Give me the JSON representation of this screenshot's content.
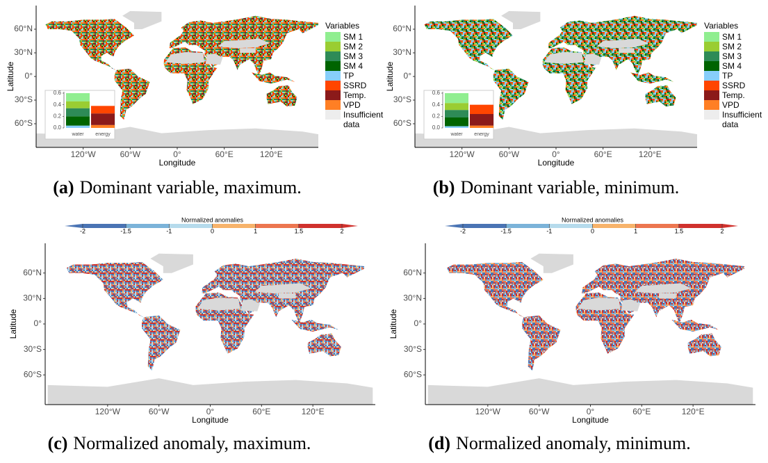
{
  "panels": [
    {
      "label": "(a)",
      "caption": "Dominant variable, maximum.",
      "map": {
        "x_label": "Longitude",
        "y_label": "Latitude",
        "xlim": [
          -180,
          180
        ],
        "ylim": [
          -90,
          90
        ],
        "xticks": [
          {
            "value": -120,
            "label": "120°W"
          },
          {
            "value": -60,
            "label": "60°W"
          },
          {
            "value": 0,
            "label": "0°"
          },
          {
            "value": 60,
            "label": "60°E"
          },
          {
            "value": 120,
            "label": "120°E"
          }
        ],
        "yticks": [
          {
            "value": -60,
            "label": "60°S"
          },
          {
            "value": -30,
            "label": "30°S"
          },
          {
            "value": 0,
            "label": "0°"
          },
          {
            "value": 30,
            "label": "30°N"
          },
          {
            "value": 60,
            "label": "60°N"
          }
        ]
      },
      "inset": {
        "type": "bar",
        "stacked": true,
        "legend_title": "Variables",
        "categories": [
          "water",
          "energy"
        ],
        "ylim": [
          0,
          0.6
        ],
        "yticks": [
          {
            "value": 0,
            "label": "0.0"
          },
          0.2,
          0.4,
          0.6
        ],
        "series": [
          {
            "name": "SM 1",
            "color": "#90ee90",
            "values": [
              0.14,
              null
            ]
          },
          {
            "name": "SM 2",
            "color": "#9acd32",
            "values": [
              0.12,
              null
            ]
          },
          {
            "name": "SM 3",
            "color": "#2e8b57",
            "values": [
              0.14,
              null
            ]
          },
          {
            "name": "SM 4",
            "color": "#006400",
            "values": [
              0.16,
              null
            ]
          },
          {
            "name": "TP",
            "color": "#87cefa",
            "values": [
              0.04,
              null
            ]
          },
          {
            "name": "SSRD",
            "color": "#ff4500",
            "values": [
              null,
              0.13
            ]
          },
          {
            "name": "Temp.",
            "color": "#8b1a1a",
            "values": [
              null,
              0.2
            ]
          },
          {
            "name": "VPD",
            "color": "#ff7f24",
            "values": [
              null,
              0.05
            ]
          }
        ],
        "missing": {
          "name": "Insufficient data",
          "color": "#ededed"
        }
      }
    },
    {
      "label": "(b)",
      "caption": "Dominant variable, minimum.",
      "map": {
        "x_label": "Longitude",
        "y_label": "Latitude",
        "xlim": [
          -180,
          180
        ],
        "ylim": [
          -90,
          90
        ],
        "xticks": [
          {
            "value": -120,
            "label": "120°W"
          },
          {
            "value": -60,
            "label": "60°W"
          },
          {
            "value": 0,
            "label": "0°"
          },
          {
            "value": 60,
            "label": "60°E"
          },
          {
            "value": 120,
            "label": "120°E"
          }
        ],
        "yticks": [
          {
            "value": -60,
            "label": "60°S"
          },
          {
            "value": -30,
            "label": "30°S"
          },
          {
            "value": 0,
            "label": "0°"
          },
          {
            "value": 30,
            "label": "30°N"
          },
          {
            "value": 60,
            "label": "60°N"
          }
        ]
      },
      "inset": {
        "type": "bar",
        "stacked": true,
        "legend_title": "Variables",
        "categories": [
          "water",
          "energy"
        ],
        "ylim": [
          0,
          0.6
        ],
        "yticks": [
          {
            "value": 0,
            "label": "0.0"
          },
          0.2,
          0.4,
          0.6
        ],
        "series": [
          {
            "name": "SM 1",
            "color": "#90ee90",
            "values": [
              0.17,
              null
            ]
          },
          {
            "name": "SM 2",
            "color": "#9acd32",
            "values": [
              0.12,
              null
            ]
          },
          {
            "name": "SM 3",
            "color": "#2e8b57",
            "values": [
              0.13,
              null
            ]
          },
          {
            "name": "SM 4",
            "color": "#006400",
            "values": [
              0.15,
              null
            ]
          },
          {
            "name": "TP",
            "color": "#87cefa",
            "values": [
              0.03,
              null
            ]
          },
          {
            "name": "SSRD",
            "color": "#ff4500",
            "values": [
              null,
              0.16
            ]
          },
          {
            "name": "Temp.",
            "color": "#8b1a1a",
            "values": [
              null,
              0.2
            ]
          },
          {
            "name": "VPD",
            "color": "#ff7f24",
            "values": [
              null,
              0.04
            ]
          }
        ],
        "missing": {
          "name": "Insufficient data",
          "color": "#ededed"
        }
      }
    },
    {
      "label": "(c)",
      "caption": "Normalized anomaly, maximum.",
      "colorbar": {
        "title": "Normalized anomalies",
        "ticks": [
          -2,
          -1.5,
          -1,
          0,
          1,
          1.5,
          2
        ],
        "colors": [
          "#4a74b4",
          "#7bb3d9",
          "#b6dbec",
          "#f7b36b",
          "#ec7650",
          "#d0312d"
        ]
      },
      "map": {
        "x_label": "Longitude",
        "y_label": "Latitude",
        "xlim": [
          -193,
          193
        ],
        "ylim": [
          -95,
          95
        ],
        "xticks": [
          {
            "value": -120,
            "label": "120°W"
          },
          {
            "value": -60,
            "label": "60°W"
          },
          {
            "value": 0,
            "label": "0°"
          },
          {
            "value": 60,
            "label": "60°E"
          },
          {
            "value": 120,
            "label": "120°E"
          }
        ],
        "yticks": [
          {
            "value": -60,
            "label": "60°S"
          },
          {
            "value": -30,
            "label": "30°S"
          },
          {
            "value": 0,
            "label": "0°"
          },
          {
            "value": 30,
            "label": "30°N"
          },
          {
            "value": 60,
            "label": "60°N"
          }
        ]
      }
    },
    {
      "label": "(d)",
      "caption": "Normalized anomaly, minimum.",
      "colorbar": {
        "title": "Normalized anomalies",
        "ticks": [
          -2,
          -1.5,
          -1,
          0,
          1,
          1.5,
          2
        ],
        "colors": [
          "#4a74b4",
          "#7bb3d9",
          "#b6dbec",
          "#f7b36b",
          "#ec7650",
          "#d0312d"
        ]
      },
      "map": {
        "x_label": "Longitude",
        "y_label": "Latitude",
        "xlim": [
          -193,
          193
        ],
        "ylim": [
          -95,
          95
        ],
        "xticks": [
          {
            "value": -120,
            "label": "120°W"
          },
          {
            "value": -60,
            "label": "60°W"
          },
          {
            "value": 0,
            "label": "0°"
          },
          {
            "value": 60,
            "label": "60°E"
          },
          {
            "value": 120,
            "label": "120°E"
          }
        ],
        "yticks": [
          {
            "value": -60,
            "label": "60°S"
          },
          {
            "value": -30,
            "label": "30°S"
          },
          {
            "value": 0,
            "label": "0°"
          },
          {
            "value": 30,
            "label": "30°N"
          },
          {
            "value": 60,
            "label": "60°N"
          }
        ]
      }
    }
  ]
}
